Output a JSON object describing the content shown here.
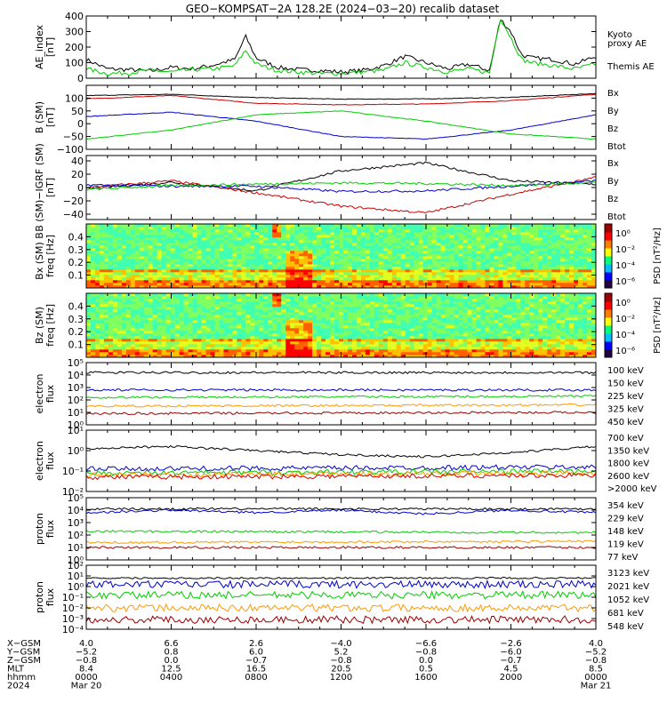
{
  "title": "GEO−KOMPSAT−2A 128.2E (2024−03−20) recalib dataset",
  "colors": {
    "black": "#000000",
    "green": "#00cc00",
    "red": "#cc0000",
    "blue": "#0000cc",
    "orange": "#ff9900",
    "darkred": "#990000",
    "cyan": "#00aaaa"
  },
  "chart_data": [
    {
      "type": "line",
      "id": "ae",
      "ylabel_lines": [
        "AE_index",
        "[nT]"
      ],
      "ylim": [
        0,
        400
      ],
      "yticks": [
        "0",
        "100",
        "200",
        "300",
        "400"
      ],
      "legend": [
        {
          "label": "Kyoto",
          "color": "#00cc00"
        },
        {
          "label": "proxy AE",
          "color": "#00cc00"
        },
        {
          "label": "Themis AE",
          "color": "#000000"
        }
      ],
      "series": [
        {
          "name": "Themis AE",
          "color": "#000000",
          "x": [
            0,
            1,
            2,
            3,
            4,
            5,
            6,
            7,
            7.5,
            8,
            9,
            10,
            11,
            12,
            13,
            14,
            15,
            16,
            17,
            18,
            19,
            19.5,
            20,
            20.5,
            21,
            22,
            23,
            24
          ],
          "y": [
            120,
            60,
            55,
            45,
            70,
            60,
            85,
            120,
            270,
            130,
            70,
            55,
            50,
            40,
            50,
            80,
            140,
            100,
            60,
            90,
            50,
            380,
            300,
            150,
            130,
            120,
            90,
            140
          ]
        },
        {
          "name": "Kyoto proxy AE",
          "color": "#00cc00",
          "x": [
            0,
            1,
            2,
            3,
            4,
            5,
            6,
            7,
            7.5,
            8,
            9,
            10,
            11,
            12,
            13,
            14,
            15,
            16,
            17,
            18,
            19,
            19.5,
            20,
            20.5,
            21,
            22,
            23,
            24
          ],
          "y": [
            60,
            30,
            35,
            50,
            40,
            55,
            60,
            80,
            180,
            90,
            50,
            40,
            30,
            30,
            40,
            50,
            100,
            70,
            40,
            60,
            35,
            390,
            260,
            120,
            100,
            80,
            60,
            90
          ]
        }
      ]
    },
    {
      "type": "line",
      "id": "bsm",
      "ylabel_lines": [
        "B (SM)",
        "[nT]"
      ],
      "ylim": [
        -100,
        150
      ],
      "yticks": [
        "−100",
        "−50",
        "0",
        "50",
        "100"
      ],
      "legend": [
        {
          "label": "Bx",
          "color": "#0000cc"
        },
        {
          "label": "By",
          "color": "#00cc00"
        },
        {
          "label": "Bz",
          "color": "#cc0000"
        },
        {
          "label": "Btot",
          "color": "#000000"
        }
      ],
      "series": [
        {
          "name": "Btot",
          "color": "#000000",
          "x": [
            0,
            4,
            8,
            12,
            16,
            20,
            24
          ],
          "y": [
            110,
            115,
            102,
            96,
            97,
            103,
            118
          ]
        },
        {
          "name": "Bz",
          "color": "#cc0000",
          "x": [
            0,
            4,
            8,
            12,
            16,
            20,
            24
          ],
          "y": [
            97,
            110,
            80,
            74,
            77,
            90,
            115
          ]
        },
        {
          "name": "Bx",
          "color": "#0000cc",
          "x": [
            0,
            4,
            8,
            12,
            16,
            20,
            24
          ],
          "y": [
            28,
            45,
            10,
            -50,
            -60,
            -25,
            35
          ]
        },
        {
          "name": "By",
          "color": "#00cc00",
          "x": [
            0,
            4,
            8,
            12,
            16,
            20,
            24
          ],
          "y": [
            -60,
            -25,
            35,
            50,
            10,
            -40,
            -60
          ]
        }
      ]
    },
    {
      "type": "line",
      "id": "bigrf",
      "ylabel_lines": [
        "B (SM)−IGRF (SM)",
        "[nT]"
      ],
      "ylim": [
        -48,
        48
      ],
      "yticks": [
        "−40",
        "−20",
        "0",
        "20",
        "40"
      ],
      "legend": [
        {
          "label": "Bx",
          "color": "#0000cc"
        },
        {
          "label": "By",
          "color": "#00cc00"
        },
        {
          "label": "Bz",
          "color": "#cc0000"
        },
        {
          "label": "Btot",
          "color": "#000000"
        }
      ],
      "series": [
        {
          "name": "Btot",
          "color": "#000000",
          "x": [
            0,
            4,
            8,
            12,
            16,
            20,
            24
          ],
          "y": [
            -2,
            8,
            -5,
            25,
            37,
            10,
            5
          ]
        },
        {
          "name": "Bz",
          "color": "#cc0000",
          "x": [
            0,
            4,
            8,
            12,
            16,
            20,
            24
          ],
          "y": [
            0,
            10,
            -8,
            -28,
            -38,
            -10,
            15
          ]
        },
        {
          "name": "Bx",
          "color": "#0000cc",
          "x": [
            0,
            4,
            8,
            12,
            16,
            20,
            24
          ],
          "y": [
            4,
            2,
            2,
            -6,
            -5,
            2,
            10
          ]
        },
        {
          "name": "By",
          "color": "#00cc00",
          "x": [
            0,
            4,
            8,
            12,
            16,
            20,
            24
          ],
          "y": [
            -3,
            3,
            5,
            7,
            6,
            3,
            7
          ]
        }
      ]
    },
    {
      "type": "heatmap",
      "id": "bx_spec",
      "ylabel_lines": [
        "Bx (SM)  B",
        "freq [Hz]"
      ],
      "ylim": [
        0,
        0.5
      ],
      "yticks": [
        "0.1",
        "0.2",
        "0.3",
        "0.4"
      ],
      "colorbar_label": "PSD [nT²/Hz]",
      "colorbar_ticks": [
        "10⁰",
        "10⁻²",
        "10⁻⁴",
        "10⁻⁶"
      ]
    },
    {
      "type": "heatmap",
      "id": "bz_spec",
      "ylabel_lines": [
        "Bz (SM)",
        "freq [Hz]"
      ],
      "ylim": [
        0,
        0.5
      ],
      "yticks": [
        "0.1",
        "0.2",
        "0.3",
        "0.4"
      ],
      "colorbar_label": "PSD [nT²/Hz]",
      "colorbar_ticks": [
        "10⁰",
        "10⁻²",
        "10⁻⁴",
        "10⁻⁶"
      ]
    },
    {
      "type": "line",
      "id": "eflux1",
      "log": true,
      "ylabel_lines": [
        "electron",
        "flux"
      ],
      "ylim": [
        0,
        5
      ],
      "yticks": [
        "10⁰",
        "10¹",
        "10²",
        "10³",
        "10⁴",
        "10⁵"
      ],
      "legend": [
        {
          "label": "100 keV",
          "color": "#000000"
        },
        {
          "label": "150 keV",
          "color": "#0000cc"
        },
        {
          "label": "225 keV",
          "color": "#00cc00"
        },
        {
          "label": "325 keV",
          "color": "#ff9900"
        },
        {
          "label": "450 keV",
          "color": "#990000"
        }
      ],
      "series": [
        {
          "name": "100 keV",
          "color": "#000000",
          "x": [
            0,
            24
          ],
          "y": [
            4.2,
            4.2
          ]
        },
        {
          "name": "150 keV",
          "color": "#0000cc",
          "x": [
            0,
            24
          ],
          "y": [
            2.8,
            2.8
          ]
        },
        {
          "name": "225 keV",
          "color": "#00cc00",
          "x": [
            0,
            24
          ],
          "y": [
            2.2,
            2.3
          ]
        },
        {
          "name": "325 keV",
          "color": "#ff9900",
          "x": [
            0,
            24
          ],
          "y": [
            1.5,
            1.6
          ]
        },
        {
          "name": "450 keV",
          "color": "#990000",
          "x": [
            0,
            24
          ],
          "y": [
            0.9,
            1.0
          ]
        }
      ]
    },
    {
      "type": "line",
      "id": "eflux2",
      "log": true,
      "ylabel_lines": [
        "electron",
        "flux"
      ],
      "ylim": [
        -2,
        1
      ],
      "yticks": [
        "10⁻²",
        "10⁻¹",
        "10⁰",
        "10¹"
      ],
      "legend": [
        {
          "label": "700 keV",
          "color": "#000000"
        },
        {
          "label": "1350 keV",
          "color": "#0000cc"
        },
        {
          "label": "1800 keV",
          "color": "#00cc00"
        },
        {
          "label": "2600 keV",
          "color": "#ff9900"
        },
        {
          "label": ">2000 keV",
          "color": "#cc0000"
        }
      ],
      "series": [
        {
          "name": "700 keV",
          "color": "#000000",
          "x": [
            0,
            4,
            8,
            12,
            16,
            20,
            24
          ],
          "y": [
            0.1,
            0.2,
            0.0,
            -0.2,
            -0.3,
            -0.1,
            0.2
          ]
        },
        {
          "name": "1350 keV",
          "color": "#0000cc",
          "x": [
            0,
            24
          ],
          "y": [
            -0.9,
            -0.8
          ]
        },
        {
          "name": "1800 keV",
          "color": "#00cc00",
          "x": [
            0,
            24
          ],
          "y": [
            -1.1,
            -1.0
          ]
        },
        {
          "name": "2600 keV",
          "color": "#ff9900",
          "x": [
            0,
            24
          ],
          "y": [
            -1.2,
            -1.1
          ]
        },
        {
          "name": ">2000 keV",
          "color": "#cc0000",
          "x": [
            0,
            24
          ],
          "y": [
            -1.3,
            -1.2
          ]
        }
      ]
    },
    {
      "type": "line",
      "id": "pflux1",
      "log": true,
      "ylabel_lines": [
        "proton",
        "flux"
      ],
      "ylim": [
        0,
        5
      ],
      "yticks": [
        "10⁰",
        "10¹",
        "10²",
        "10³",
        "10⁴",
        "10⁵"
      ],
      "legend": [
        {
          "label": "354 keV",
          "color": "#990000"
        },
        {
          "label": "229 keV",
          "color": "#ff9900"
        },
        {
          "label": "148 keV",
          "color": "#00cc00"
        },
        {
          "label": "119 keV",
          "color": "#0000cc"
        },
        {
          "label": "77 keV",
          "color": "#000000"
        }
      ],
      "series": [
        {
          "name": "77 keV",
          "color": "#000000",
          "x": [
            0,
            24
          ],
          "y": [
            4.1,
            4.1
          ]
        },
        {
          "name": "119 keV",
          "color": "#0000cc",
          "x": [
            0,
            4,
            8,
            12,
            16,
            20,
            24
          ],
          "y": [
            3.8,
            4.0,
            3.8,
            4.0,
            3.7,
            4.0,
            3.8
          ]
        },
        {
          "name": "148 keV",
          "color": "#00cc00",
          "x": [
            0,
            24
          ],
          "y": [
            2.3,
            2.2
          ]
        },
        {
          "name": "229 keV",
          "color": "#ff9900",
          "x": [
            0,
            24
          ],
          "y": [
            1.4,
            1.5
          ]
        },
        {
          "name": "354 keV",
          "color": "#990000",
          "x": [
            0,
            24
          ],
          "y": [
            1.0,
            1.0
          ]
        }
      ]
    },
    {
      "type": "line",
      "id": "pflux2",
      "log": true,
      "ylabel_lines": [
        "proton",
        "flux"
      ],
      "ylim": [
        -4,
        2
      ],
      "yticks": [
        "10⁻⁴",
        "10⁻³",
        "10⁻²",
        "10⁻¹",
        "10⁰",
        "10¹",
        "10²"
      ],
      "legend": [
        {
          "label": "3123 keV",
          "color": "#990000"
        },
        {
          "label": "2021 keV",
          "color": "#ff9900"
        },
        {
          "label": "1052 keV",
          "color": "#00cc00"
        },
        {
          "label": "681 keV",
          "color": "#0000cc"
        },
        {
          "label": "548 keV",
          "color": "#000000"
        }
      ],
      "series": [
        {
          "name": "548 keV",
          "color": "#000000",
          "x": [
            0,
            24
          ],
          "y": [
            0.8,
            0.8
          ]
        },
        {
          "name": "681 keV",
          "color": "#0000cc",
          "x": [
            0,
            24
          ],
          "y": [
            0.2,
            0.2
          ]
        },
        {
          "name": "1052 keV",
          "color": "#00cc00",
          "x": [
            0,
            24
          ],
          "y": [
            -0.8,
            -0.8
          ]
        },
        {
          "name": "2021 keV",
          "color": "#ff9900",
          "x": [
            0,
            24
          ],
          "y": [
            -2.0,
            -2.0
          ]
        },
        {
          "name": "3123 keV",
          "color": "#990000",
          "x": [
            0,
            24
          ],
          "y": [
            -3.1,
            -3.1
          ]
        }
      ]
    }
  ],
  "footer": {
    "rows": [
      {
        "label": "X−GSM",
        "values": [
          "4.0",
          "6.6",
          "2.6",
          "−4.0",
          "−6.6",
          "−2.6",
          "4.0"
        ]
      },
      {
        "label": "Y−GSM",
        "values": [
          "−5.2",
          "0.8",
          "6.0",
          "5.2",
          "−0.8",
          "−6.0",
          "−5.2"
        ]
      },
      {
        "label": "Z−GSM",
        "values": [
          "−0.8",
          "0.0",
          "−0.7",
          "−0.8",
          "0.0",
          "−0.7",
          "−0.8"
        ]
      },
      {
        "label": "MLT",
        "values": [
          "8.4",
          "12.5",
          "16.5",
          "20.5",
          "0.5",
          "4.5",
          "8.5"
        ]
      },
      {
        "label": "hhmm",
        "values": [
          "0000",
          "0400",
          "0800",
          "1200",
          "1600",
          "2000",
          "0000"
        ]
      },
      {
        "label": "2024",
        "values": [
          "Mar 20",
          "",
          "",
          "",
          "",
          "",
          "Mar 21"
        ]
      }
    ]
  }
}
